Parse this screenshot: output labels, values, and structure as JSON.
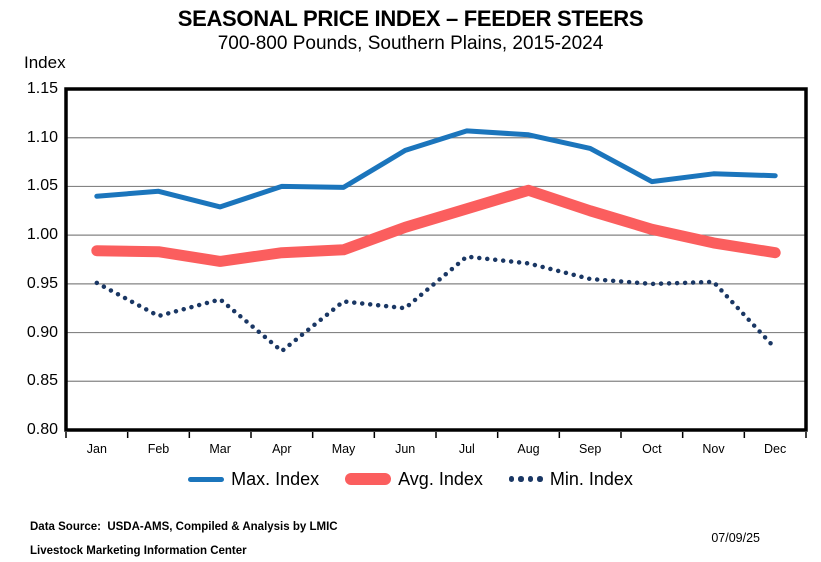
{
  "header": {
    "title": "SEASONAL PRICE INDEX – FEEDER STEERS",
    "subtitle": "700-800 Pounds, Southern Plains, 2015-2024"
  },
  "chart_data": {
    "type": "line",
    "title": "SEASONAL PRICE INDEX – FEEDER STEERS",
    "subtitle": "700-800 Pounds, Southern Plains, 2015-2024",
    "ylabel": "Index",
    "ylim": [
      0.8,
      1.15
    ],
    "ytick_step": 0.05,
    "yticks": [
      "1.15",
      "1.10",
      "1.05",
      "1.00",
      "0.95",
      "0.90",
      "0.85",
      "0.80"
    ],
    "grid": true,
    "legend_position": "bottom",
    "categories": [
      "Jan",
      "Feb",
      "Mar",
      "Apr",
      "May",
      "Jun",
      "Jul",
      "Aug",
      "Sep",
      "Oct",
      "Nov",
      "Dec"
    ],
    "series": [
      {
        "name": "Max. Index",
        "style": "solid",
        "color": "#1B75BC",
        "width": 5,
        "values": [
          1.04,
          1.045,
          1.029,
          1.05,
          1.049,
          1.087,
          1.107,
          1.103,
          1.089,
          1.055,
          1.063,
          1.061
        ]
      },
      {
        "name": "Avg. Index",
        "style": "solid",
        "color": "#FB5E5E",
        "width": 11,
        "values": [
          0.984,
          0.983,
          0.973,
          0.982,
          0.985,
          1.008,
          1.027,
          1.046,
          1.025,
          1.006,
          0.992,
          0.982
        ]
      },
      {
        "name": "Min. Index",
        "style": "dotted",
        "color": "#1A3764",
        "width": 4.5,
        "values": [
          0.951,
          0.917,
          0.934,
          0.881,
          0.932,
          0.925,
          0.978,
          0.971,
          0.955,
          0.95,
          0.952,
          0.884
        ]
      }
    ],
    "frame_color": "#000000",
    "gridline_color": "#848484"
  },
  "footer": {
    "source_line": "Data Source:  USDA-AMS, Compiled & Analysis by LMIC",
    "org_line": "Livestock Marketing Information Center",
    "date": "07/09/25"
  }
}
